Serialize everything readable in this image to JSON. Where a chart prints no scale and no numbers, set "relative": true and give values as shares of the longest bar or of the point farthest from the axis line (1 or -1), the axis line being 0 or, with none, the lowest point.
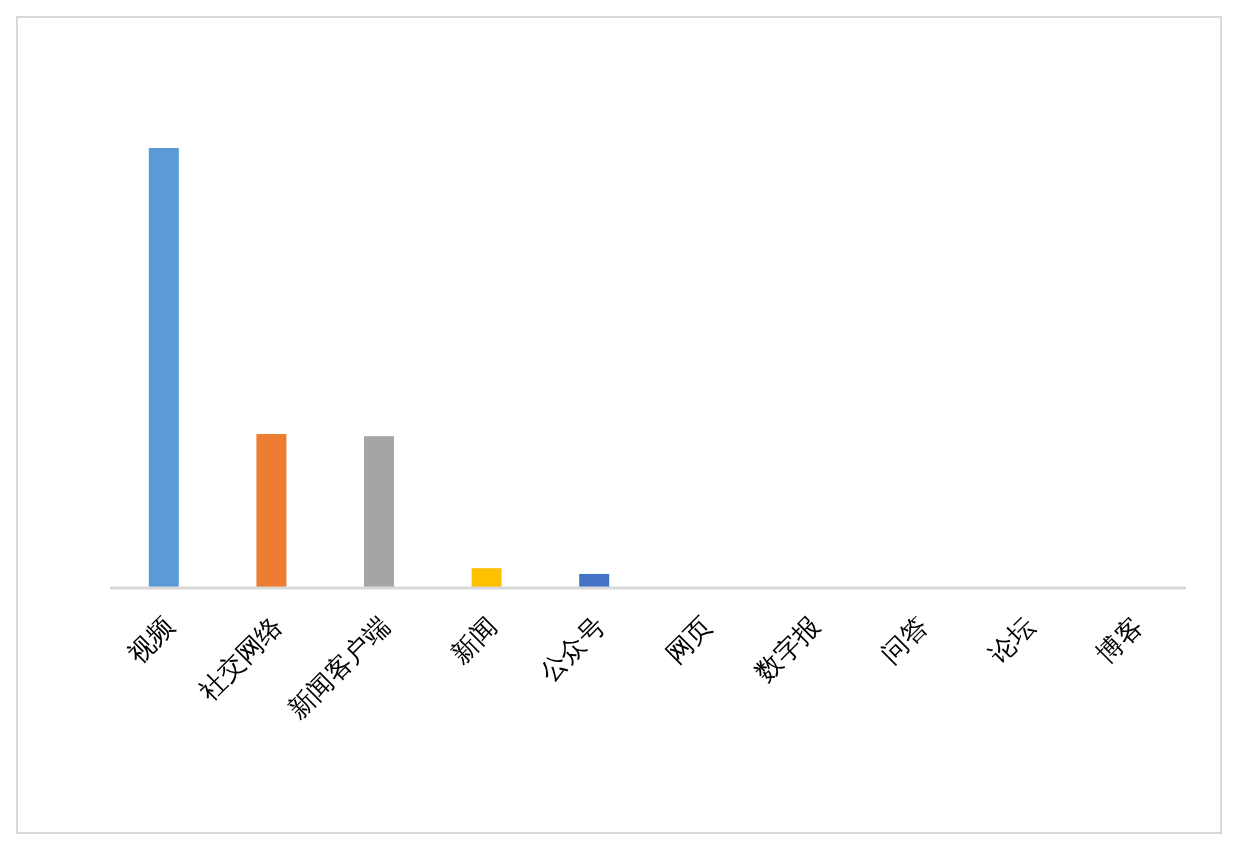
{
  "chart_data": {
    "type": "bar",
    "relative": true,
    "categories": [
      "视频",
      "社交网络",
      "新闻客户端",
      "新闻",
      "公众号",
      "网页",
      "数字报",
      "问答",
      "论坛",
      "博客"
    ],
    "values": [
      1,
      0.35,
      0.345,
      0.045,
      0.032,
      0,
      0,
      0,
      0,
      0
    ],
    "colors": [
      "#5b9bd5",
      "#ed7d31",
      "#a5a5a5",
      "#ffc000",
      "#4472c4",
      "#70ad47",
      "#255e91",
      "#9e480e",
      "#636363",
      "#997300"
    ],
    "data_labels": false
  }
}
